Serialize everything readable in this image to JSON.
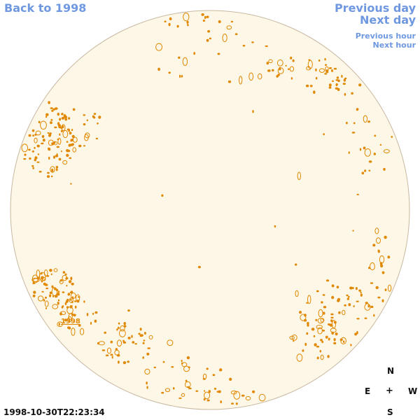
{
  "nav": {
    "back": "Back to 1998",
    "previous_day": "Previous day",
    "next_day": "Next day",
    "previous_hour": "Previous hour",
    "next_hour": "Next hour"
  },
  "disk": {
    "fill_color": "#fdf7e8",
    "border_color": "#c8b8a0",
    "feature_color": "#e08800",
    "year_label": "1998"
  },
  "compass": {
    "north": "N",
    "east": "E",
    "center": "+",
    "west": "W",
    "south": "S"
  },
  "timestamp": "1998-10-30T22:23:34"
}
